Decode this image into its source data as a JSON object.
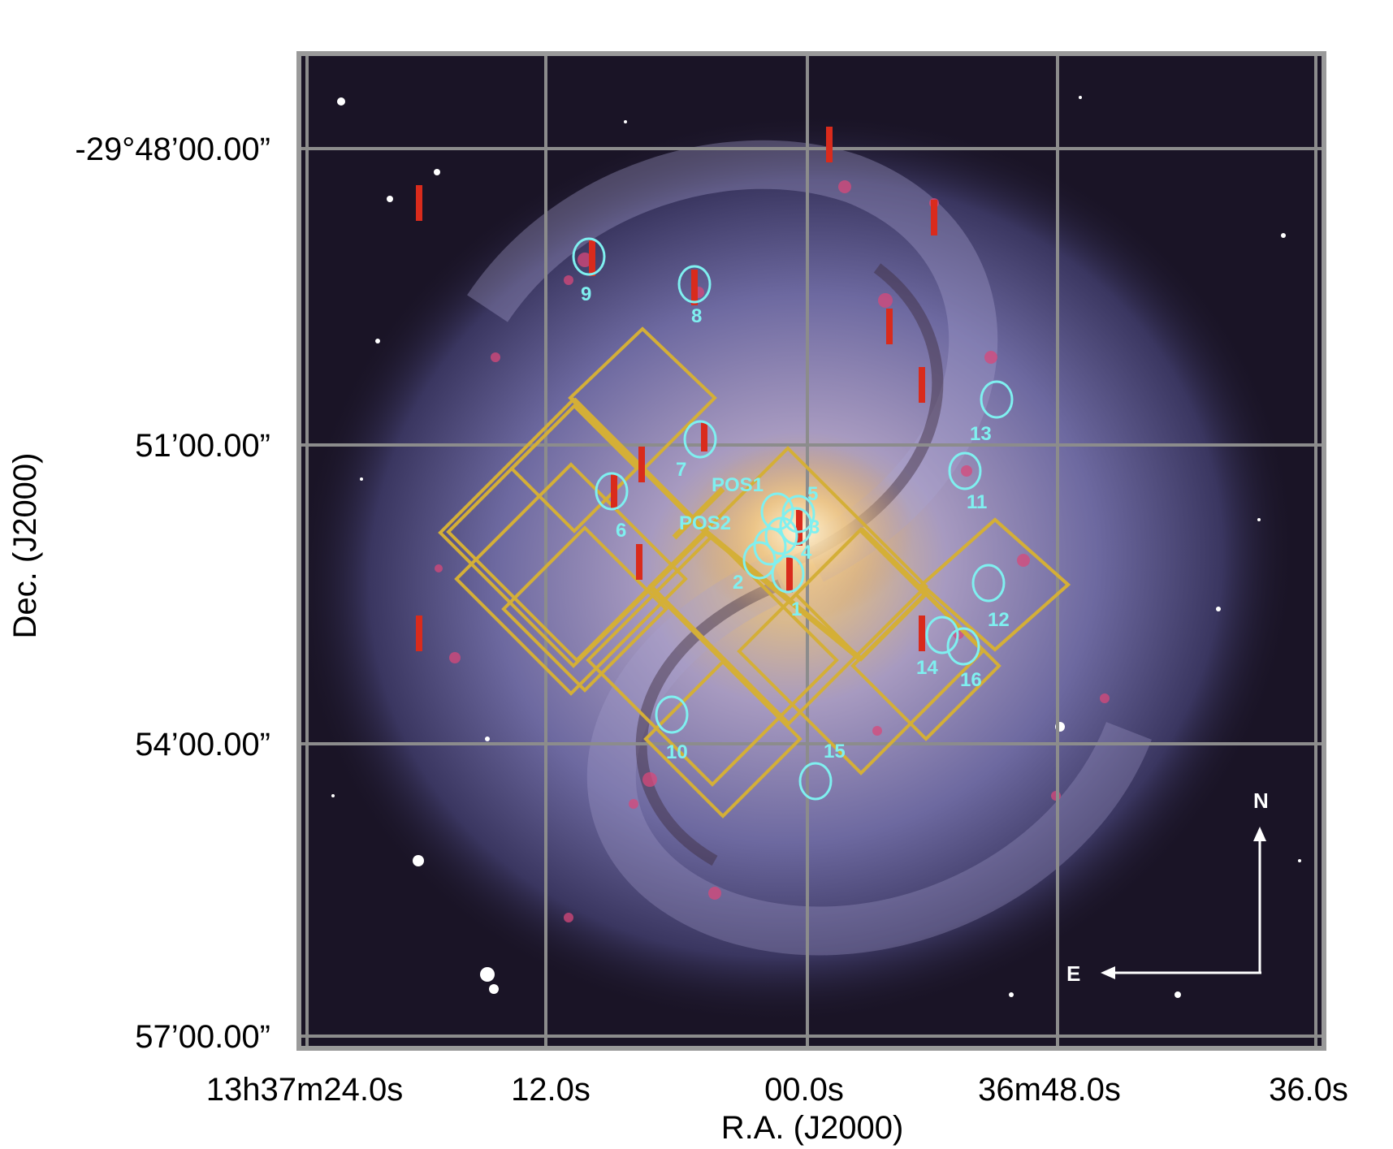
{
  "colors": {
    "frame": "#9a9a9a",
    "gridline": "#8c8c8c",
    "sky": "#1a1426",
    "galaxy_disk": "#6f6aa0",
    "galaxy_core": "#e6c38c",
    "hii_regions": "#d8487a",
    "field_outline": "#d4af37",
    "circle_marker": "#7ff0f0",
    "slit_marker": "#d92b1c",
    "compass": "#ffffff"
  },
  "axes": {
    "xlabel": "R.A.  (J2000)",
    "ylabel": "Dec.  (J2000)",
    "xticks": [
      "13h37m24.0s",
      "12.0s",
      "00.0s",
      "36m48.0s",
      "36.0s"
    ],
    "yticks": [
      "-29°48’00.00”",
      "51’00.00”",
      "54’00.00”",
      "57’00.00”"
    ]
  },
  "markers": {
    "circles": [
      {
        "label": "1"
      },
      {
        "label": "2"
      },
      {
        "label": "3"
      },
      {
        "label": "4"
      },
      {
        "label": "5"
      },
      {
        "label": "6"
      },
      {
        "label": "7"
      },
      {
        "label": "8"
      },
      {
        "label": "9"
      },
      {
        "label": "10"
      },
      {
        "label": "11"
      },
      {
        "label": "12"
      },
      {
        "label": "13"
      },
      {
        "label": "14"
      },
      {
        "label": "15"
      },
      {
        "label": "16"
      }
    ],
    "positions": [
      "POS1",
      "POS2"
    ]
  },
  "compass": {
    "north": "N",
    "east": "E"
  }
}
